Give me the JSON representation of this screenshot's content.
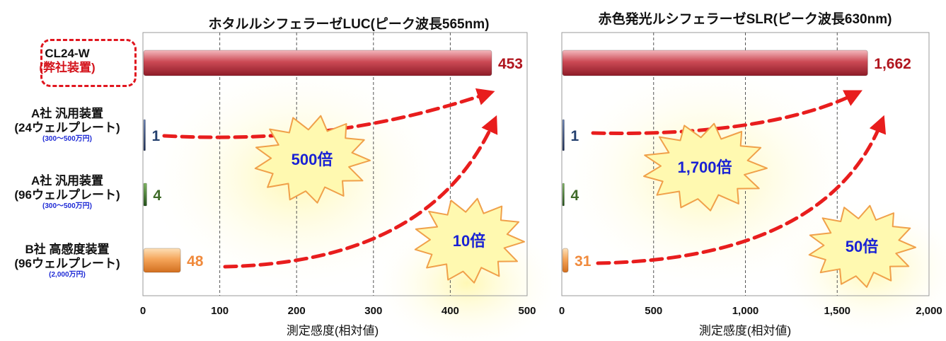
{
  "chart_data": [
    {
      "type": "bar",
      "orientation": "horizontal",
      "title": "ホタルルシフェラーゼLUC(ピーク波長565nm)",
      "xlabel": "測定感度(相対値)",
      "xlim": [
        0,
        500
      ],
      "xticks": [
        "0",
        "100",
        "200",
        "300",
        "400",
        "500"
      ],
      "grid": "vertical-dashed",
      "categories": [
        {
          "line1": "CL24-W",
          "line2": "(弊社装置)",
          "price": ""
        },
        {
          "line1": "A社 汎用装置",
          "line2": "(24ウェルプレート)",
          "price": "(300～500万円)"
        },
        {
          "line1": "A社 汎用装置",
          "line2": "(96ウェルプレート)",
          "price": "(300～500万円)"
        },
        {
          "line1": "B社 高感度装置",
          "line2": "(96ウェルプレート)",
          "price": "(2,000万円)"
        }
      ],
      "values": [
        453,
        1,
        4,
        48
      ],
      "value_labels": [
        "453",
        "1",
        "4",
        "48"
      ],
      "colors": [
        "#c43a45",
        "#2a3f6a",
        "#2f6b1d",
        "#f08a3c"
      ],
      "annotations": [
        "500倍",
        "10倍"
      ]
    },
    {
      "type": "bar",
      "orientation": "horizontal",
      "title": "赤色発光ルシフェラーゼSLR(ピーク波長630nm)",
      "xlabel": "測定感度(相対値)",
      "xlim": [
        0,
        2000
      ],
      "xticks": [
        "0",
        "500",
        "1,000",
        "1,500",
        "2,000"
      ],
      "grid": "vertical-dashed",
      "values": [
        1662,
        1,
        4,
        31
      ],
      "value_labels": [
        "1,662",
        "1",
        "4",
        "31"
      ],
      "colors": [
        "#c43a45",
        "#2a3f6a",
        "#2f6b1d",
        "#f08a3c"
      ],
      "annotations": [
        "1,700倍",
        "50倍"
      ]
    }
  ]
}
